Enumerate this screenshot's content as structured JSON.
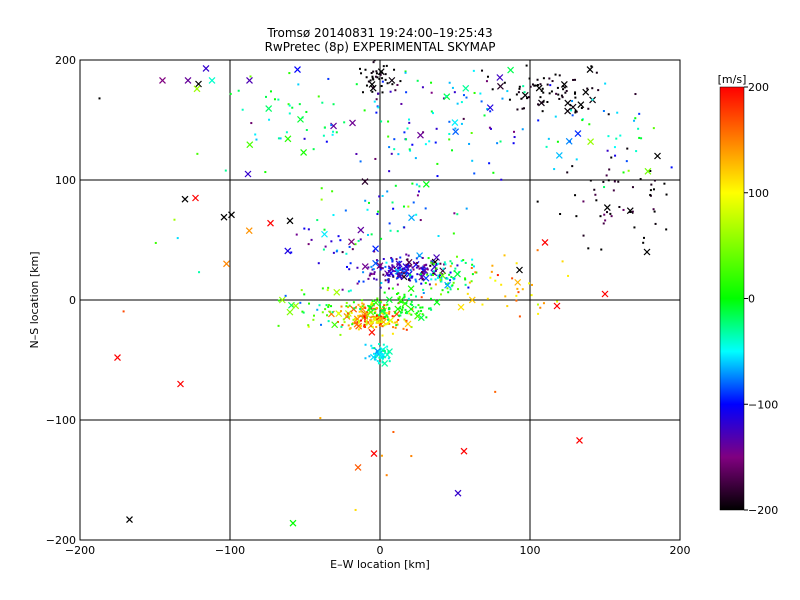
{
  "chart_data": {
    "type": "scatter",
    "title": "Tromsø 20140831 19:24:00–19:25:43",
    "subtitle": "RwPretec (8p) EXPERIMENTAL SKYMAP",
    "xlabel": "E–W location [km]",
    "ylabel": "N–S location [km]",
    "xlim": [
      -200,
      200
    ],
    "ylim": [
      -200,
      200
    ],
    "xticks": [
      "−200",
      "−100",
      "0",
      "100",
      "200"
    ],
    "yticks": [
      "−200",
      "−100",
      "0",
      "100",
      "200"
    ],
    "grid": true,
    "colorbar": {
      "label": "[m/s]",
      "range": [
        -200,
        200
      ],
      "ticks": [
        "200",
        "100",
        "0",
        "−100",
        "−200"
      ]
    },
    "markers": [
      "dot",
      "x"
    ],
    "clusters": [
      {
        "x": 0,
        "y": 185,
        "sx": 10,
        "sy": 10,
        "n": 45,
        "v": -200,
        "dv": 25
      },
      {
        "x": 115,
        "y": 175,
        "sx": 25,
        "sy": 12,
        "n": 80,
        "v": -200,
        "dv": 20
      },
      {
        "x": 40,
        "y": 150,
        "sx": 60,
        "sy": 30,
        "n": 110,
        "v": -90,
        "dv": 120
      },
      {
        "x": -50,
        "y": 150,
        "sx": 30,
        "sy": 25,
        "n": 45,
        "v": -20,
        "dv": 80
      },
      {
        "x": 155,
        "y": 80,
        "sx": 30,
        "sy": 25,
        "n": 55,
        "v": -190,
        "dv": 40
      },
      {
        "x": 150,
        "y": 140,
        "sx": 30,
        "sy": 25,
        "n": 35,
        "v": -30,
        "dv": 90
      },
      {
        "x": 20,
        "y": 80,
        "sx": 40,
        "sy": 20,
        "n": 45,
        "v": -60,
        "dv": 120
      },
      {
        "x": 15,
        "y": 25,
        "sx": 20,
        "sy": 8,
        "n": 180,
        "v": -130,
        "dv": 70
      },
      {
        "x": 45,
        "y": 20,
        "sx": 15,
        "sy": 10,
        "n": 70,
        "v": -20,
        "dv": 80
      },
      {
        "x": -5,
        "y": -15,
        "sx": 15,
        "sy": 8,
        "n": 180,
        "v": 130,
        "dv": 90
      },
      {
        "x": 15,
        "y": -5,
        "sx": 15,
        "sy": 8,
        "n": 80,
        "v": 0,
        "dv": 40
      },
      {
        "x": 0,
        "y": -45,
        "sx": 5,
        "sy": 6,
        "n": 60,
        "v": -45,
        "dv": 25
      },
      {
        "x": -40,
        "y": -5,
        "sx": 20,
        "sy": 15,
        "n": 50,
        "v": 20,
        "dv": 100
      },
      {
        "x": 80,
        "y": 10,
        "sx": 30,
        "sy": 20,
        "n": 40,
        "v": 130,
        "dv": 60
      },
      {
        "x": -30,
        "y": 45,
        "sx": 25,
        "sy": 15,
        "n": 30,
        "v": -80,
        "dv": 120
      },
      {
        "x": -130,
        "y": 60,
        "sx": 40,
        "sy": 40,
        "n": 10,
        "v": 60,
        "dv": 150
      },
      {
        "x": 0,
        "y": -120,
        "sx": 60,
        "sy": 40,
        "n": 8,
        "v": 150,
        "dv": 40
      }
    ],
    "points": [
      {
        "x": -167,
        "y": -183,
        "v": -200,
        "m": "x"
      },
      {
        "x": -58,
        "y": -186,
        "v": 0,
        "m": "x"
      },
      {
        "x": 52,
        "y": -161,
        "v": -120,
        "m": "x"
      },
      {
        "x": 56,
        "y": -126,
        "v": 200,
        "m": "x"
      },
      {
        "x": -4,
        "y": -128,
        "v": 200,
        "m": "x"
      },
      {
        "x": 133,
        "y": -117,
        "v": 200,
        "m": "x"
      },
      {
        "x": -175,
        "y": -48,
        "v": 200,
        "m": "x"
      },
      {
        "x": -133,
        "y": -70,
        "v": 200,
        "m": "x"
      },
      {
        "x": -130,
        "y": 84,
        "v": -200,
        "m": "x"
      },
      {
        "x": -123,
        "y": 85,
        "v": 200,
        "m": "x"
      },
      {
        "x": -104,
        "y": 69,
        "v": -200,
        "m": "x"
      },
      {
        "x": -99,
        "y": 71,
        "v": -200,
        "m": "x"
      },
      {
        "x": -73,
        "y": 64,
        "v": 200,
        "m": "x"
      },
      {
        "x": -60,
        "y": 66,
        "v": -200,
        "m": "x"
      },
      {
        "x": -145,
        "y": 183,
        "v": -150,
        "m": "x"
      },
      {
        "x": -128,
        "y": 183,
        "v": -140,
        "m": "x"
      },
      {
        "x": -121,
        "y": 180,
        "v": -200,
        "m": "x"
      },
      {
        "x": -116,
        "y": 193,
        "v": -120,
        "m": "x"
      },
      {
        "x": -112,
        "y": 183,
        "v": -40,
        "m": "x"
      },
      {
        "x": -87,
        "y": 183,
        "v": -130,
        "m": "x"
      },
      {
        "x": -55,
        "y": 192,
        "v": -100,
        "m": "x"
      },
      {
        "x": -88,
        "y": 105,
        "v": -120,
        "m": "x"
      },
      {
        "x": -122,
        "y": 176,
        "v": 60,
        "m": "x"
      },
      {
        "x": 140,
        "y": 192,
        "v": -200,
        "m": "x"
      },
      {
        "x": 185,
        "y": 120,
        "v": -200,
        "m": "x"
      },
      {
        "x": 93,
        "y": 25,
        "v": -200,
        "m": "x"
      },
      {
        "x": 110,
        "y": 48,
        "v": 200,
        "m": "x"
      },
      {
        "x": 150,
        "y": 5,
        "v": 200,
        "m": "x"
      },
      {
        "x": 118,
        "y": -5,
        "v": 200,
        "m": "x"
      },
      {
        "x": 178,
        "y": 40,
        "v": -200,
        "m": "x"
      },
      {
        "x": -187,
        "y": 168,
        "v": -200,
        "m": "dot"
      }
    ]
  }
}
